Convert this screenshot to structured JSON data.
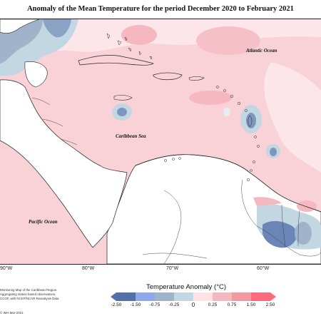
{
  "title": "Anomaly of the Mean Temperature for the period December 2020 to February 2021",
  "map": {
    "labels": {
      "atlantic": "Atlantic Ocean",
      "caribbean": "Caribbean Sea",
      "pacific": "Pacific Ocean"
    },
    "longitudes": [
      "90°W",
      "80°W",
      "70°W",
      "60°W"
    ]
  },
  "credit": {
    "lines": [
      "Monitoring Map of the Caribbean Region.",
      "Aggregating station based observations,",
      "CCOF, with NCEP/NCAR Reanalysis Data"
    ],
    "date": "© IMH Mar-2021"
  },
  "legend": {
    "title": "Temperature Anomaly (°C)",
    "ticks": [
      "-2.50",
      "-1.50",
      "-0.75",
      "-0.25",
      "0",
      "0.25",
      "0.75",
      "1.50",
      "2.50"
    ],
    "colors": [
      "#5470a8",
      "#8ea8e8",
      "#9fb3ca",
      "#c3d7e3",
      "#ffffff",
      "#fde3e6",
      "#f4b9c0",
      "#f29aa4",
      "#fb6b80"
    ]
  }
}
